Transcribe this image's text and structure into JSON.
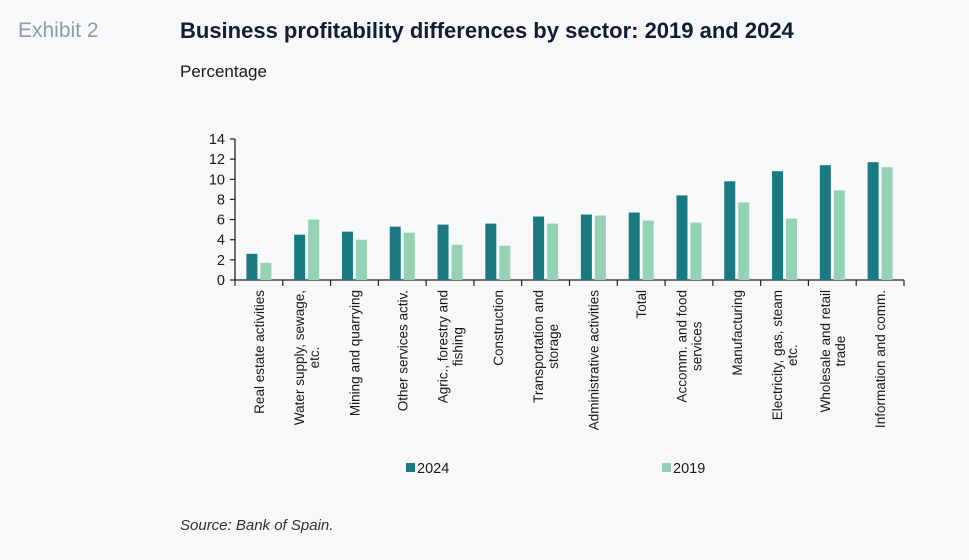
{
  "header": {
    "exhibit": "Exhibit 2",
    "title": "Business profitability differences by sector: 2019 and 2024",
    "subtitle": "Percentage"
  },
  "footer": {
    "source": "Source: Bank of Spain."
  },
  "chart_data": {
    "type": "bar",
    "title": "Business profitability differences by sector: 2019 and 2024",
    "ylabel": "Percentage",
    "xlabel": "",
    "ylim": [
      0,
      14
    ],
    "yticks": [
      0,
      2,
      4,
      6,
      8,
      10,
      12,
      14
    ],
    "grid": false,
    "legend_position": "bottom",
    "categories": [
      [
        "Real estate activities"
      ],
      [
        "Water supply,  sewage,",
        "etc."
      ],
      [
        "Mining and quarrying"
      ],
      [
        "Other services activ."
      ],
      [
        "Agric., forestry and",
        "fishing"
      ],
      [
        "Construction"
      ],
      [
        "Transportation and",
        "storage"
      ],
      [
        "Administrative activities"
      ],
      [
        "Total"
      ],
      [
        "Accomm. and food",
        "services"
      ],
      [
        "Manufacturing"
      ],
      [
        "Electricity, gas, steam",
        "etc."
      ],
      [
        "Wholesale and retail",
        "trade"
      ],
      [
        "Information and comm."
      ]
    ],
    "series": [
      {
        "name": "2024",
        "color": "#1a7a82",
        "values": [
          2.6,
          4.5,
          4.8,
          5.3,
          5.5,
          5.6,
          6.3,
          6.5,
          6.7,
          8.4,
          9.8,
          10.8,
          11.4,
          11.7
        ]
      },
      {
        "name": "2019",
        "color": "#95d2b3",
        "values": [
          1.7,
          6.0,
          4.0,
          4.7,
          3.5,
          3.4,
          5.6,
          6.4,
          5.9,
          5.7,
          7.7,
          6.1,
          8.9,
          11.2
        ]
      }
    ]
  }
}
